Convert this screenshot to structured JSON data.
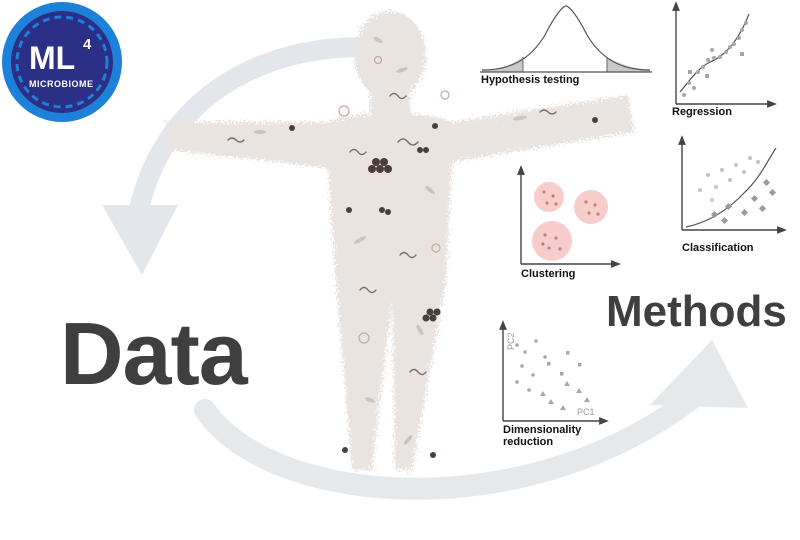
{
  "logo": {
    "main": "ML",
    "superscript": "4",
    "sub": "MICROBIOME",
    "colors": {
      "ring": "#1d80d9",
      "inner": "#2c2f86"
    }
  },
  "labels": {
    "data": "Data",
    "methods": "Methods"
  },
  "methods": {
    "hypothesis_testing": "Hypothesis testing",
    "regression": "Regression",
    "classification": "Classification",
    "clustering": "Clustering",
    "dimensionality_reduction_line1": "Dimensionality",
    "dimensionality_reduction_line2": "reduction",
    "pc1": "PC1",
    "pc2": "PC2"
  },
  "colors": {
    "text": "#3f3f3f",
    "arrow": "#e1e5ea",
    "body": "#e9e4e0",
    "cluster": "#f4c6c4",
    "marks": "#a7a7a7"
  }
}
